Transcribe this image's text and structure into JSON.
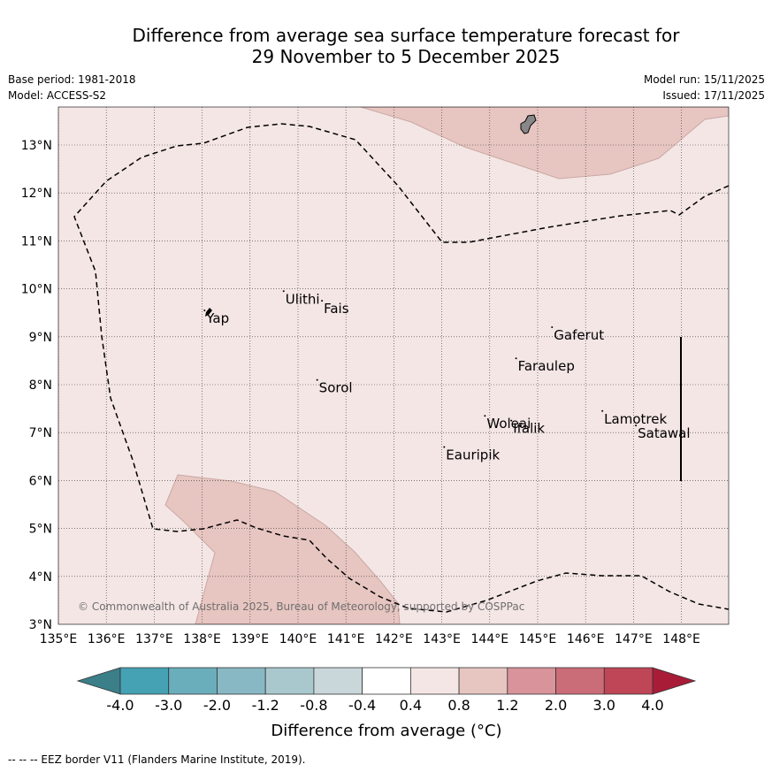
{
  "title_lines": [
    "Difference from average sea surface temperature forecast for",
    "29 November to 5 December 2025"
  ],
  "meta": {
    "base_period": "Base period: 1981-2018",
    "model": "Model: ACCESS-S2",
    "model_run": "Model run: 15/11/2025",
    "issued": "Issued: 17/11/2025"
  },
  "map": {
    "lon_range": [
      135,
      149
    ],
    "lat_range": [
      3,
      13.8
    ],
    "lon_ticks": [
      "135°E",
      "136°E",
      "137°E",
      "138°E",
      "139°E",
      "140°E",
      "141°E",
      "142°E",
      "143°E",
      "144°E",
      "145°E",
      "146°E",
      "147°E",
      "148°E"
    ],
    "lat_ticks": [
      "3°N",
      "4°N",
      "5°N",
      "6°N",
      "7°N",
      "8°N",
      "9°N",
      "10°N",
      "11°N",
      "12°N",
      "13°N"
    ],
    "background_anomaly_color": "#f4e6e5",
    "warm_patch_color": "#e7c5c1",
    "places": [
      {
        "name": "Yap",
        "lon": 138.05,
        "lat": 9.55
      },
      {
        "name": "Ulithi",
        "lon": 139.7,
        "lat": 9.95
      },
      {
        "name": "Fais",
        "lon": 140.5,
        "lat": 9.75
      },
      {
        "name": "Sorol",
        "lon": 140.4,
        "lat": 8.1
      },
      {
        "name": "Gaferut",
        "lon": 145.3,
        "lat": 9.2
      },
      {
        "name": "Faraulep",
        "lon": 144.55,
        "lat": 8.55
      },
      {
        "name": "Woleai",
        "lon": 143.9,
        "lat": 7.35
      },
      {
        "name": "Ifalik",
        "lon": 144.45,
        "lat": 7.25
      },
      {
        "name": "Lamotrek",
        "lon": 146.35,
        "lat": 7.45
      },
      {
        "name": "Satawal",
        "lon": 147.05,
        "lat": 7.15
      },
      {
        "name": "Eauripik",
        "lon": 143.05,
        "lat": 6.7
      }
    ],
    "credit": "© Commonwealth of Australia 2025, Bureau of Meteorology, supported by COSPPac"
  },
  "colorbar": {
    "title": "Difference from average (°C)",
    "labels": [
      "-4.0",
      "-3.0",
      "-2.0",
      "-1.2",
      "-0.8",
      "-0.4",
      "0.4",
      "0.8",
      "1.2",
      "2.0",
      "3.0",
      "4.0"
    ],
    "under_color": "#3b7f88",
    "over_color": "#a81c38",
    "colors": [
      "#45a2b4",
      "#6aaebc",
      "#88b8c3",
      "#a9c8ce",
      "#c9d7db",
      "#ffffff",
      "#f4e6e5",
      "#e7c5c1",
      "#d9939a",
      "#cb6d78",
      "#be4657"
    ]
  },
  "footnote": "--  --  -- EEZ border V11 (Flanders Marine Institute, 2019)."
}
